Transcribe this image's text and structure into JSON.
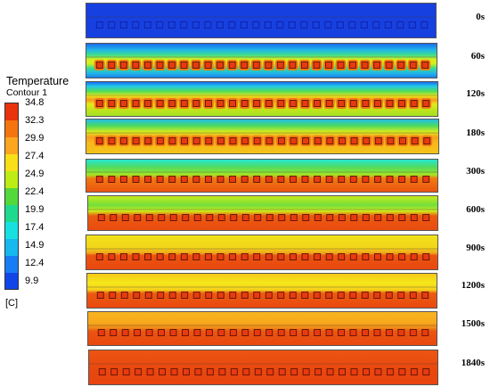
{
  "legend": {
    "title": "Temperature",
    "subtitle": "Contour 1",
    "unit": "[C]",
    "ticks": [
      "34.8",
      "32.3",
      "29.9",
      "27.4",
      "24.9",
      "22.4",
      "19.9",
      "17.4",
      "14.9",
      "12.4",
      "9.9"
    ],
    "colors": [
      "#e8330d",
      "#f57410",
      "#fca51f",
      "#f8df17",
      "#bded14",
      "#53d93b",
      "#1fd98f",
      "#17e0e0",
      "#17b8f0",
      "#177df5",
      "#1046e8"
    ]
  },
  "panels": [
    {
      "time": "0s"
    },
    {
      "time": "60s"
    },
    {
      "time": "120s"
    },
    {
      "time": "180s"
    },
    {
      "time": "300s"
    },
    {
      "time": "600s"
    },
    {
      "time": "900s"
    },
    {
      "time": "1200s"
    },
    {
      "time": "1500s"
    },
    {
      "time": "1840s"
    }
  ]
}
